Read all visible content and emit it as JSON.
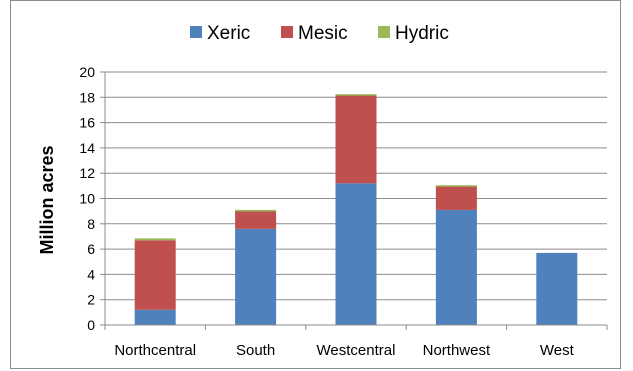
{
  "chart_data": {
    "type": "bar",
    "stacked": true,
    "categories": [
      "Northcentral",
      "South",
      "Westcentral",
      "Northwest",
      "West"
    ],
    "series": [
      {
        "name": "Xeric",
        "values": [
          1.2,
          7.6,
          11.2,
          9.1,
          5.7
        ],
        "color": "#4f81bd"
      },
      {
        "name": "Mesic",
        "values": [
          5.5,
          1.4,
          7.0,
          1.9,
          0.0
        ],
        "color": "#c0504d"
      },
      {
        "name": "Hydric",
        "values": [
          0.15,
          0.1,
          0.05,
          0.05,
          0.0
        ],
        "color": "#9bbb59"
      }
    ],
    "ylabel": "Million acres",
    "xlabel": "",
    "ylim": [
      0,
      20
    ],
    "yticks": [
      0,
      2,
      4,
      6,
      8,
      10,
      12,
      14,
      16,
      18,
      20
    ],
    "grid": true,
    "legend": "top"
  }
}
